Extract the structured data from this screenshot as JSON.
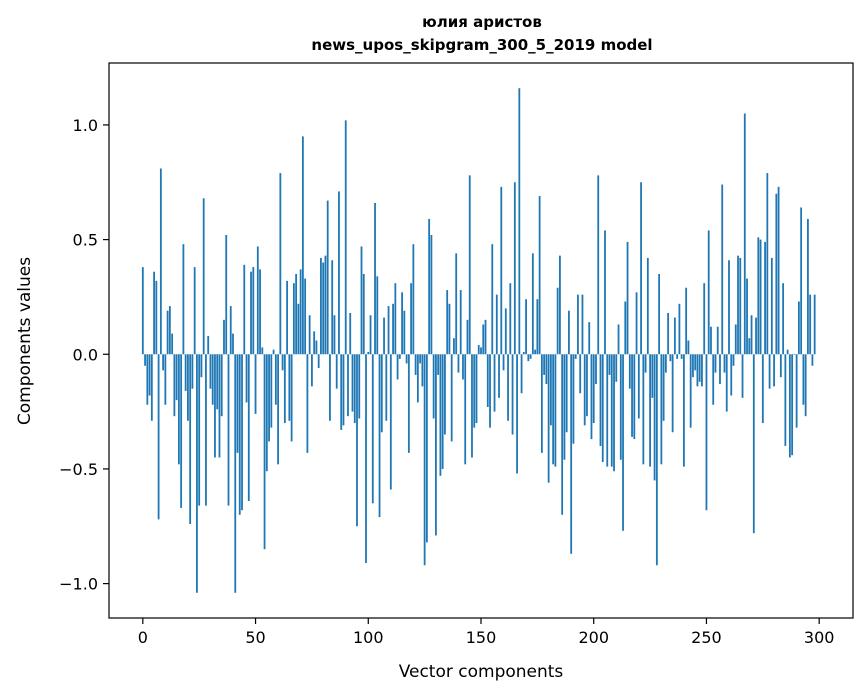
{
  "chart_data": {
    "type": "bar",
    "title": "юлия аристов",
    "subtitle": "news_upos_skipgram_300_5_2019 model",
    "xlabel": "Vector components",
    "ylabel": "Components values",
    "xlim": [
      -15,
      315
    ],
    "ylim": [
      -1.15,
      1.27
    ],
    "xticks": [
      0,
      50,
      100,
      150,
      200,
      250,
      300
    ],
    "xtick_labels": [
      "0",
      "50",
      "100",
      "150",
      "200",
      "250",
      "300"
    ],
    "yticks": [
      -1.0,
      -0.5,
      0.0,
      0.5,
      1.0
    ],
    "ytick_labels": [
      "−1.0",
      "−0.5",
      "0.0",
      "0.5",
      "1.0"
    ],
    "color": "#1f77b4",
    "values": [
      0.38,
      -0.05,
      -0.22,
      -0.18,
      -0.29,
      0.36,
      0.32,
      -0.72,
      0.81,
      -0.07,
      -0.22,
      0.19,
      0.21,
      0.09,
      -0.27,
      -0.2,
      -0.48,
      -0.67,
      0.48,
      -0.16,
      -0.29,
      -0.74,
      -0.15,
      0.38,
      -1.04,
      -0.66,
      -0.1,
      0.68,
      -0.66,
      0.08,
      -0.15,
      -0.22,
      -0.45,
      -0.24,
      -0.45,
      -0.27,
      0.15,
      0.52,
      -0.66,
      0.21,
      0.09,
      -1.04,
      -0.43,
      -0.7,
      -0.68,
      0.39,
      -0.21,
      -0.64,
      0.36,
      0.38,
      -0.26,
      0.47,
      0.37,
      0.03,
      -0.85,
      -0.51,
      -0.38,
      -0.32,
      0.02,
      -0.22,
      -0.48,
      0.79,
      -0.07,
      -0.3,
      0.32,
      -0.29,
      -0.38,
      0.31,
      0.35,
      0.22,
      0.37,
      0.95,
      0.33,
      -0.43,
      0.17,
      -0.14,
      0.1,
      0.06,
      -0.06,
      0.42,
      0.4,
      0.43,
      0.67,
      -0.29,
      0.41,
      0.17,
      -0.15,
      0.71,
      -0.33,
      -0.31,
      1.02,
      -0.27,
      0.18,
      -0.25,
      -0.3,
      -0.75,
      -0.28,
      0.47,
      0.35,
      -0.91,
      0.01,
      0.17,
      -0.65,
      0.66,
      0.34,
      -0.71,
      -0.34,
      0.16,
      -0.29,
      0.21,
      -0.59,
      0.22,
      0.31,
      -0.11,
      -0.02,
      0.27,
      0.19,
      -0.04,
      -0.43,
      0.31,
      0.48,
      -0.09,
      -0.21,
      -0.04,
      -0.14,
      -0.92,
      -0.82,
      0.59,
      0.52,
      -0.28,
      -0.79,
      -0.09,
      -0.53,
      -0.5,
      -0.35,
      0.28,
      0.22,
      -0.38,
      0.07,
      0.44,
      -0.08,
      0.28,
      -0.11,
      -0.48,
      0.15,
      0.78,
      -0.45,
      -0.32,
      -0.3,
      0.04,
      0.03,
      0.13,
      0.15,
      -0.23,
      -0.32,
      0.48,
      -0.25,
      0.26,
      -0.19,
      0.73,
      -0.07,
      0.2,
      -0.29,
      0.31,
      -0.35,
      0.75,
      -0.52,
      1.16,
      -0.17,
      0.01,
      0.24,
      -0.03,
      -0.02,
      0.44,
      0.02,
      0.24,
      0.69,
      -0.43,
      -0.09,
      -0.13,
      -0.56,
      -0.31,
      -0.48,
      -0.49,
      0.29,
      0.43,
      -0.7,
      -0.46,
      -0.34,
      0.19,
      -0.87,
      -0.39,
      -0.02,
      0.26,
      -0.17,
      0.26,
      -0.31,
      -0.27,
      0.14,
      -0.37,
      -0.3,
      -0.13,
      0.78,
      -0.4,
      -0.47,
      0.54,
      -0.49,
      -0.09,
      -0.49,
      -0.51,
      -0.12,
      0.13,
      -0.46,
      -0.77,
      0.23,
      0.49,
      -0.15,
      -0.36,
      -0.37,
      0.27,
      -0.28,
      0.75,
      -0.48,
      -0.08,
      0.42,
      -0.49,
      -0.19,
      -0.55,
      -0.92,
      0.35,
      -0.48,
      -0.29,
      -0.08,
      0.18,
      -0.03,
      -0.34,
      0.16,
      -0.02,
      0.22,
      -0.02,
      -0.49,
      0.29,
      0.06,
      -0.32,
      -0.1,
      -0.07,
      -0.14,
      -0.12,
      -0.14,
      0.31,
      -0.68,
      0.54,
      0.12,
      -0.22,
      -0.08,
      0.12,
      -0.13,
      0.74,
      -0.08,
      -0.25,
      0.41,
      -0.18,
      -0.05,
      0.13,
      0.43,
      0.42,
      -0.19,
      1.05,
      0.33,
      0.07,
      0.17,
      -0.78,
      0.16,
      0.51,
      0.5,
      -0.3,
      0.49,
      0.79,
      -0.15,
      0.42,
      -0.14,
      0.7,
      0.73,
      -0.1,
      0.31,
      -0.4,
      0.02,
      -0.45,
      -0.44,
      0.0,
      -0.32,
      0.23,
      0.64,
      -0.22,
      -0.27,
      0.59,
      0.26,
      -0.05,
      0.26
    ]
  }
}
